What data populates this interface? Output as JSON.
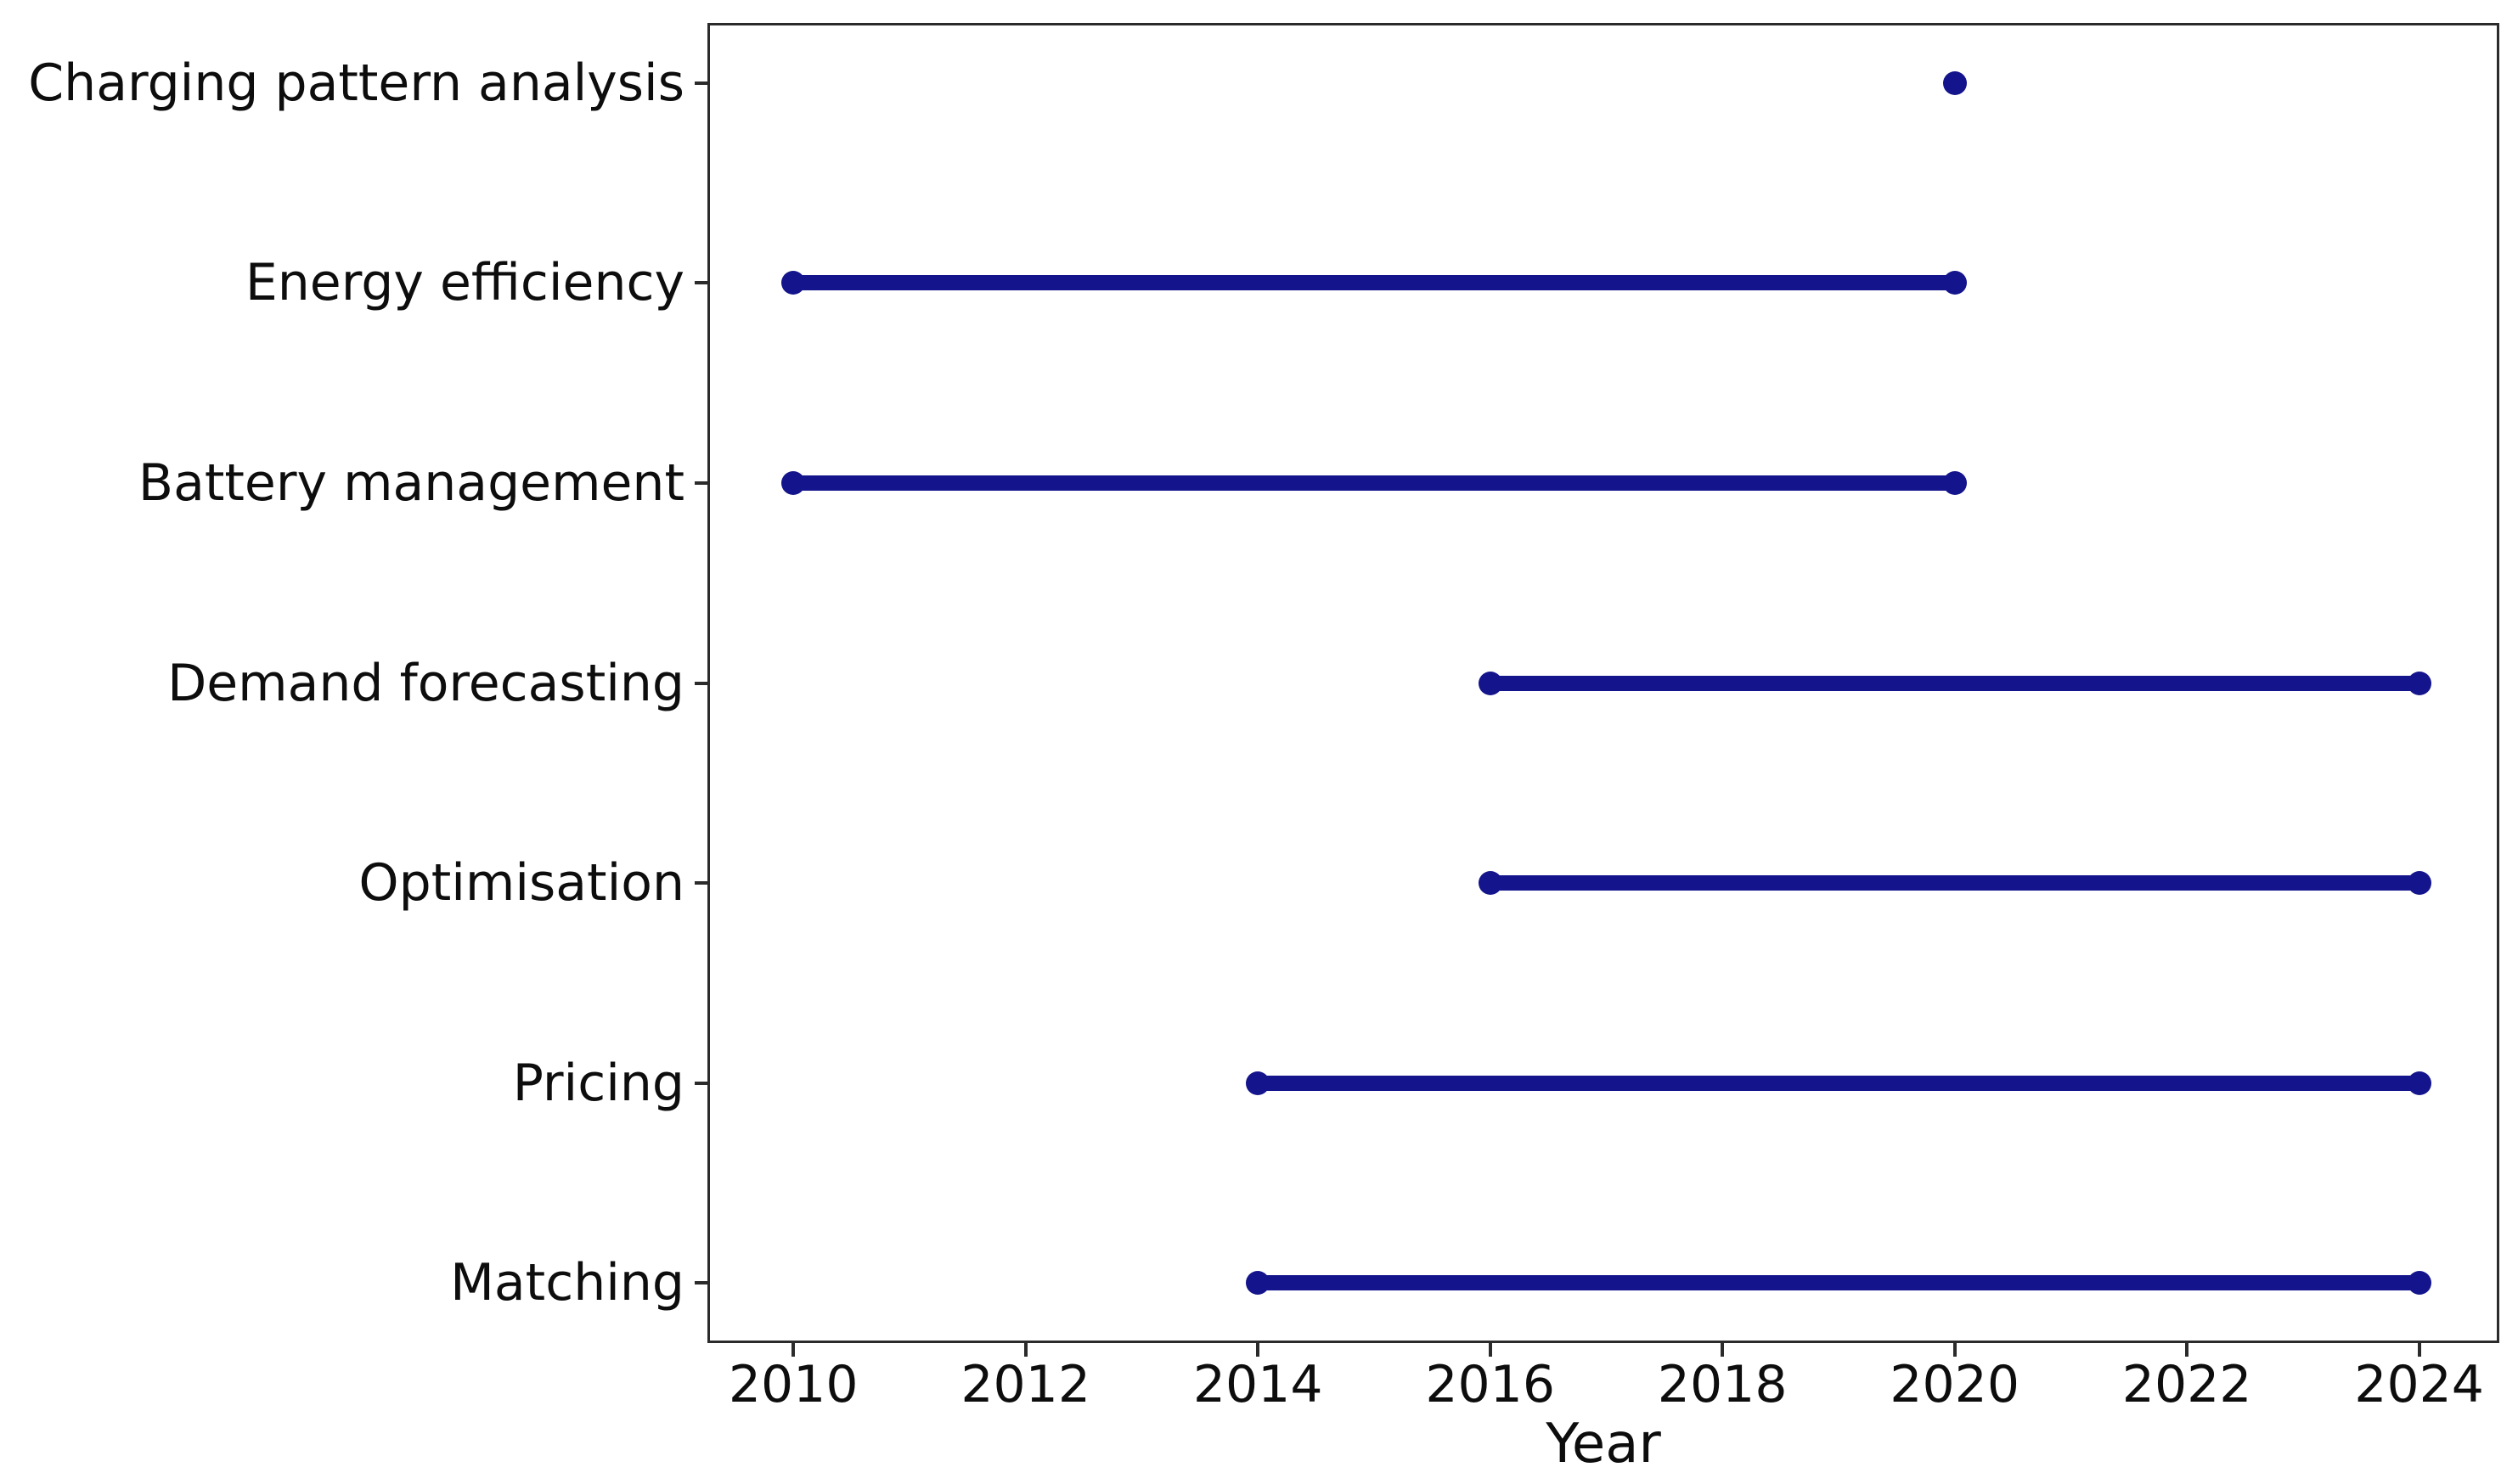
{
  "chart_data": {
    "type": "gantt",
    "title": "",
    "xlabel": "Year",
    "ylabel": "",
    "grid": false,
    "legend": false,
    "line_color": "#14148c",
    "axis_color": "#2b2b2b",
    "text_color": "#0d0d0d",
    "xlim": [
      2009.26,
      2024.69
    ],
    "x_ticks": [
      2010,
      2012,
      2014,
      2016,
      2018,
      2020,
      2022,
      2024
    ],
    "y_row_padding": 0.3,
    "categories": [
      "Charging pattern analysis",
      "Energy efficiency",
      "Battery management",
      "Demand forecasting",
      "Optimisation",
      "Pricing",
      "Matching"
    ],
    "series": [
      {
        "name": "Charging pattern analysis",
        "start": 2020,
        "end": 2020
      },
      {
        "name": "Energy efficiency",
        "start": 2010,
        "end": 2020
      },
      {
        "name": "Battery management",
        "start": 2010,
        "end": 2020
      },
      {
        "name": "Demand forecasting",
        "start": 2016,
        "end": 2024
      },
      {
        "name": "Optimisation",
        "start": 2016,
        "end": 2024
      },
      {
        "name": "Pricing",
        "start": 2014,
        "end": 2024
      },
      {
        "name": "Matching",
        "start": 2014,
        "end": 2024
      }
    ]
  }
}
